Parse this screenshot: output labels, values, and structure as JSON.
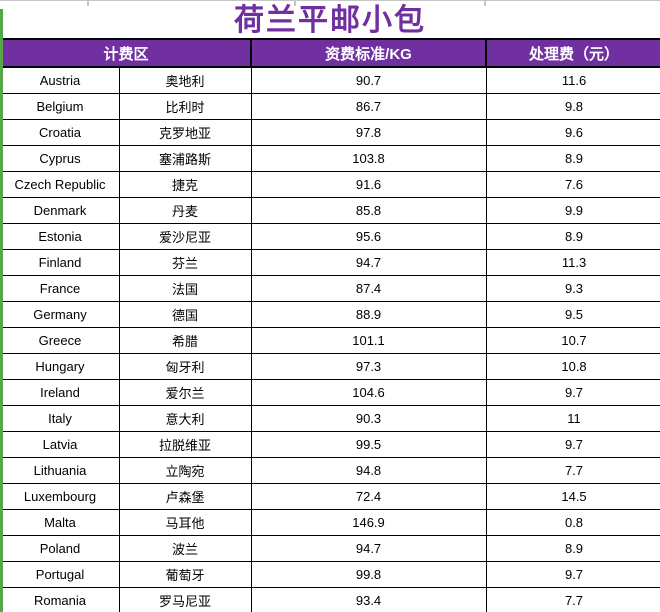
{
  "title": "荷兰平邮小包",
  "colors": {
    "header_purple": "#7030a0",
    "title_purple": "#7030a0",
    "sheet_edge_green": "#57a64a",
    "border_black": "#000000",
    "gridline_gray": "#c6c6c6"
  },
  "table": {
    "headers": {
      "zone": "计费区",
      "rate": "资费标准/KG",
      "fee": "处理费（元）"
    },
    "rows": [
      {
        "en": "Austria",
        "cn": "奥地利",
        "rate": "90.7",
        "fee": "11.6"
      },
      {
        "en": "Belgium",
        "cn": "比利时",
        "rate": "86.7",
        "fee": "9.8"
      },
      {
        "en": "Croatia",
        "cn": "克罗地亚",
        "rate": "97.8",
        "fee": "9.6"
      },
      {
        "en": "Cyprus",
        "cn": "塞浦路斯",
        "rate": "103.8",
        "fee": "8.9"
      },
      {
        "en": "Czech Republic",
        "cn": "捷克",
        "rate": "91.6",
        "fee": "7.6"
      },
      {
        "en": "Denmark",
        "cn": "丹麦",
        "rate": "85.8",
        "fee": "9.9"
      },
      {
        "en": "Estonia",
        "cn": "爱沙尼亚",
        "rate": "95.6",
        "fee": "8.9"
      },
      {
        "en": "Finland",
        "cn": "芬兰",
        "rate": "94.7",
        "fee": "11.3"
      },
      {
        "en": "France",
        "cn": "法国",
        "rate": "87.4",
        "fee": "9.3"
      },
      {
        "en": "Germany",
        "cn": "德国",
        "rate": "88.9",
        "fee": "9.5"
      },
      {
        "en": "Greece",
        "cn": "希腊",
        "rate": "101.1",
        "fee": "10.7"
      },
      {
        "en": "Hungary",
        "cn": "匈牙利",
        "rate": "97.3",
        "fee": "10.8"
      },
      {
        "en": "Ireland",
        "cn": "爱尔兰",
        "rate": "104.6",
        "fee": "9.7"
      },
      {
        "en": "Italy",
        "cn": "意大利",
        "rate": "90.3",
        "fee": "11"
      },
      {
        "en": "Latvia",
        "cn": "拉脱维亚",
        "rate": "99.5",
        "fee": "9.7"
      },
      {
        "en": "Lithuania",
        "cn": "立陶宛",
        "rate": "94.8",
        "fee": "7.7"
      },
      {
        "en": "Luxembourg",
        "cn": "卢森堡",
        "rate": "72.4",
        "fee": "14.5"
      },
      {
        "en": "Malta",
        "cn": "马耳他",
        "rate": "146.9",
        "fee": "0.8"
      },
      {
        "en": "Poland",
        "cn": "波兰",
        "rate": "94.7",
        "fee": "8.9"
      },
      {
        "en": "Portugal",
        "cn": "葡萄牙",
        "rate": "99.8",
        "fee": "9.7"
      },
      {
        "en": "Romania",
        "cn": "罗马尼亚",
        "rate": "93.4",
        "fee": "7.7"
      }
    ]
  }
}
